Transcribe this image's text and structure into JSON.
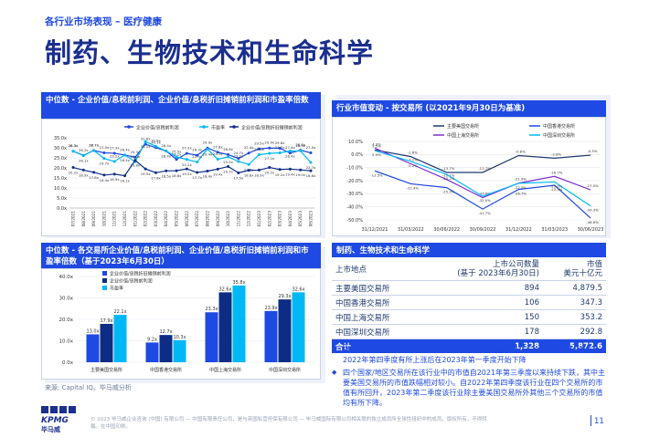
{
  "header": {
    "section": "各行业市场表现 – 医疗健康",
    "title": "制药、生物技术和生命科学"
  },
  "panel_top_left": {
    "title": "中位数 - 企业价值/息税前利润、企业价值/息税折旧摊销前利润和市盈率倍数",
    "legend": [
      "企业价值/息税前利润",
      "市盈率",
      "企业价值/息税折旧摊销前利润"
    ]
  },
  "panel_top_right": {
    "title": "行业市值变动 - 按交易所 (以2021年9月30日为基准)",
    "legend": [
      "主要美国交易所",
      "中国香港交易所",
      "中国上海交易所",
      "中国深圳交易所"
    ]
  },
  "panel_bottom_left": {
    "title": "中位数 - 各交易所企业价值/息税前利润、企业价值/息税折旧摊销前利润和市盈率倍数（基于2023年6月30日）",
    "legend": [
      "企业价值/息税折旧摊销前利润",
      "企业价值/息税前利润",
      "市盈率"
    ]
  },
  "table_panel": {
    "title": "制药、生物技术和生命科学",
    "col1": "上市地点",
    "col2_line1": "上市公司数量",
    "col2_line2": "(基于 2023年6月30日)",
    "col3_line1": "市值",
    "col3_line2": "美元十亿元",
    "rows": [
      {
        "name": "主要美国交易所",
        "count": "894",
        "cap": "4,879.5"
      },
      {
        "name": "中国香港交易所",
        "count": "106",
        "cap": "347.3"
      },
      {
        "name": "中国上海交易所",
        "count": "150",
        "cap": "353.2"
      },
      {
        "name": "中国深圳交易所",
        "count": "178",
        "cap": "292.8"
      }
    ],
    "total": {
      "name": "合计",
      "count": "1,328",
      "cap": "5,872.6"
    }
  },
  "bullets": [
    "对于制药、生物技术和生命科学行业，在过去的两年里，三个市场倍数持续波动，2022年第四季度有所上涨后在2023年第一季度开始下降",
    "四个国家/地区交易所在该行业中的市值自2021年第三季度以来持续下跌，其中主要美国交易所的市值跌幅相对较小。自2022年第四季度该行业在四个交易所的市值有所回升，2023年第二季度该行业除主要美国交易所外其他三个交易所的市值均有所下降。"
  ],
  "source": "来源: Capital IQ。毕马威分析",
  "footer": {
    "note": "© 2023 毕马威企业咨询 (中国) 有限公司 — 中国有限责任公司，是与英国私营担保有限公司 — 毕马威国际有限公司相关联的独立成员所全球性组织中的成员。版权所有，不得转载。在中国印刷。",
    "page": "11",
    "logo": "KPMG",
    "logo_sub": "毕马威"
  },
  "chart_data": [
    {
      "type": "line",
      "title": "中位数 - 企业价值/息税前利润、企业价值/息税折旧摊销前利润和市盈率倍数",
      "x": [
        "07/2021",
        "08/2021",
        "09/2021",
        "10/2021",
        "11/2021",
        "12/2021",
        "01/2022",
        "02/2022",
        "03/2022",
        "04/2022",
        "05/2022",
        "06/2022",
        "07/2022",
        "08/2022",
        "09/2022",
        "10/2022",
        "11/2022",
        "12/2022",
        "01/2023",
        "02/2023",
        "03/2023",
        "04/2023",
        "05/2023",
        "06/2023"
      ],
      "ylim": [
        0,
        35
      ],
      "yticks": [
        "0.0x",
        "5.0x",
        "10.0x",
        "15.0x",
        "20.0x",
        "25.0x",
        "30.0x",
        "35.0x"
      ],
      "series": [
        {
          "name": "企业价值/息税前利润",
          "color": "#1e49e2",
          "labels": [
            "28.3x",
            "26.2x",
            "28.7x",
            "27.5x",
            "27.3x",
            "26.4x",
            "25.3x",
            "31.8x",
            "30.1x",
            "28.4x",
            "24.2x",
            "27.2x",
            "26.3x",
            "29.9x",
            "27.8x",
            "26.6x",
            "24.7x",
            "27.4x",
            "29.5x",
            "29.9x",
            "29.8x",
            "27.4x",
            "28.8x",
            "27.5x"
          ],
          "values": [
            28.3,
            26.2,
            28.7,
            27.5,
            27.3,
            26.4,
            25.3,
            31.8,
            30.1,
            28.4,
            24.2,
            27.2,
            26.3,
            29.9,
            27.8,
            26.6,
            24.7,
            27.4,
            29.5,
            29.9,
            29.8,
            27.4,
            28.8,
            27.5
          ]
        },
        {
          "name": "市盈率",
          "color": "#00b8f5",
          "labels": [
            "28.3x",
            "26.1x",
            "28.7x",
            "24.7x",
            "23.2x",
            "26.4x",
            "23.0x",
            "33.1x",
            "30.8x",
            "28.4x",
            "25.5x",
            "24.2x",
            "22.9x",
            "29.4x",
            "24.3x",
            "25.5x",
            "23.2x",
            "21.7x",
            "26.6x",
            "27.2x",
            "27.5x",
            "28.4x",
            "28.5x",
            "22.7x"
          ],
          "values": [
            28.3,
            26.1,
            28.7,
            24.7,
            23.2,
            26.4,
            23.0,
            33.1,
            30.8,
            28.4,
            25.5,
            24.2,
            22.9,
            29.4,
            24.3,
            25.5,
            23.2,
            21.7,
            26.6,
            27.2,
            27.5,
            28.4,
            28.5,
            22.7
          ]
        },
        {
          "name": "企业价值/息税折旧摊销前利润",
          "color": "#0c2d83",
          "labels": [
            "20.2x",
            "18.9x",
            "17.8x",
            "16.4x",
            "16.9x",
            "16.1x",
            "23.8x",
            "19.5x",
            "17.6x",
            "18.5x",
            "18.6x",
            "19.5x",
            "17.7x",
            "18.4x",
            "19.4x",
            "20.7x",
            "17.5x",
            "18.8x",
            "18.9x",
            "20.2x",
            "19.2x",
            "19.4x",
            "19.0x",
            "18.6x"
          ],
          "values": [
            20.2,
            18.9,
            17.8,
            16.4,
            16.9,
            16.1,
            23.8,
            19.5,
            17.6,
            18.5,
            18.6,
            19.5,
            17.7,
            18.4,
            19.4,
            20.7,
            17.5,
            18.8,
            18.9,
            20.2,
            19.2,
            19.4,
            19.0,
            18.6
          ]
        }
      ]
    },
    {
      "type": "line",
      "title": "行业市值变动 - 按交易所 (以2021年9月30日为基准)",
      "x": [
        "31/12/2021",
        "31/03/2022",
        "30/06/2022",
        "30/09/2022",
        "31/12/2022",
        "31/03/2023",
        "30/06/2023"
      ],
      "ylim": [
        -50,
        10
      ],
      "yticks": [
        "-50.0%",
        "-40.0%",
        "-30.0%",
        "-20.0%",
        "-10.0%",
        "0.0%",
        "10.0%"
      ],
      "series": [
        {
          "name": "主要美国交易所",
          "color": "#1e3a6e",
          "values": [
            3.5,
            -1.6,
            -13.7,
            -13.7,
            -0.8,
            -2.8,
            -0.5
          ],
          "labels": [
            "3.5%",
            "-1.6%",
            "-13.7%",
            "-13.7%",
            "-0.8%",
            "-2.8%",
            "-0.5%"
          ]
        },
        {
          "name": "中国香港交易所",
          "color": "#1e49e2",
          "values": [
            -12.5,
            -22.4,
            -25.3,
            -41.7,
            -26.7,
            -23.5,
            -48.6
          ],
          "labels": [
            "-12.5%",
            "-22.4%",
            "-25.3%",
            "-41.7%",
            "-26.7%",
            "-23.5%",
            "-48.6%"
          ]
        },
        {
          "name": "中国上海交易所",
          "color": "#7b2fd2",
          "values": [
            4.9,
            -7.1,
            -19.1,
            -33.0,
            -21.9,
            -16.7,
            -27.0
          ],
          "labels": [
            "4.9%",
            "-7.1%",
            "-19.1%",
            "-33.0%",
            "-21.9%",
            "-16.7%",
            "-27.0%"
          ]
        },
        {
          "name": "中国深圳交易所",
          "color": "#00b8f5",
          "values": [
            2.9,
            -5.2,
            -15.2,
            -32.0,
            -22.0,
            -21.0,
            -39.3
          ],
          "labels": [
            "2.9%",
            "-5.2%",
            "-15.2%",
            "-32.0%",
            "-22.0%",
            "-21.0%",
            "-39.3%"
          ]
        }
      ]
    },
    {
      "type": "bar",
      "title": "中位数 - 各交易所企业价值/息税前利润、企业价值/息税折旧摊销前利润和市盈率倍数（基于2023年6月30日）",
      "categories": [
        "主要美国交易所",
        "中国香港交易所",
        "中国上海交易所",
        "中国深圳交易所"
      ],
      "ylim": [
        0,
        40
      ],
      "yticks": [
        "0.0x",
        "10.0x",
        "20.0x",
        "30.0x",
        "40.0x"
      ],
      "series": [
        {
          "name": "企业价值/息税折旧摊销前利润",
          "color": "#1e49e2",
          "values": [
            13.0,
            9.2,
            23.3,
            23.9
          ],
          "labels": [
            "13.0x",
            "9.2x",
            "23.3x",
            "23.9x"
          ]
        },
        {
          "name": "企业价值/息税前利润",
          "color": "#0c2d83",
          "values": [
            17.9,
            12.7,
            32.6,
            29.3
          ],
          "labels": [
            "17.9x",
            "12.7x",
            "32.6x",
            "29.3x"
          ]
        },
        {
          "name": "市盈率",
          "color": "#00b8f5",
          "values": [
            22.1,
            10.3,
            35.8,
            32.6
          ],
          "labels": [
            "22.1x",
            "10.3x",
            "35.8x",
            "32.6x"
          ]
        }
      ]
    }
  ]
}
